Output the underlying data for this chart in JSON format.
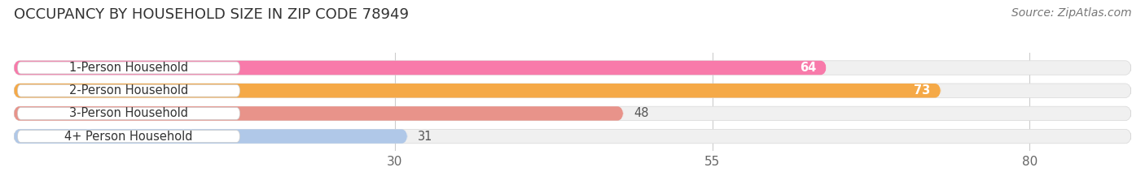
{
  "title": "OCCUPANCY BY HOUSEHOLD SIZE IN ZIP CODE 78949",
  "source": "Source: ZipAtlas.com",
  "categories": [
    "1-Person Household",
    "2-Person Household",
    "3-Person Household",
    "4+ Person Household"
  ],
  "values": [
    64,
    73,
    48,
    31
  ],
  "bar_colors": [
    "#f87aaa",
    "#f5a947",
    "#e8938a",
    "#b0c8e8"
  ],
  "bar_edge_colors": [
    "#e05080",
    "#e08020",
    "#d07060",
    "#7090c0"
  ],
  "label_colors": [
    "white",
    "white",
    "black",
    "black"
  ],
  "xlim": [
    0,
    88
  ],
  "xticks": [
    30,
    55,
    80
  ],
  "tick_fontsize": 11,
  "label_fontsize": 10.5,
  "title_fontsize": 13,
  "source_fontsize": 10,
  "bar_height": 0.62,
  "background_color": "#ffffff",
  "bar_bg_color": "#eeeeee",
  "track_color": "#f0f0f0"
}
